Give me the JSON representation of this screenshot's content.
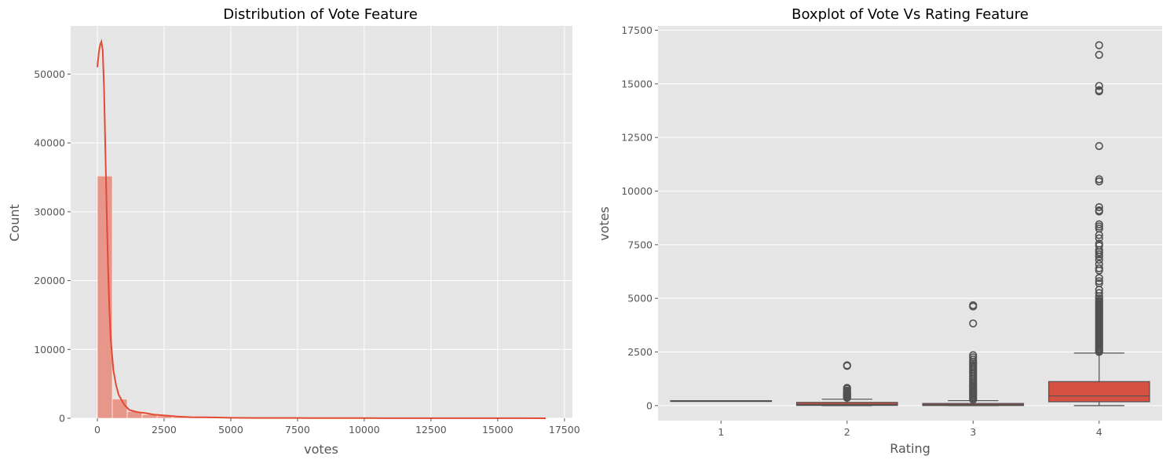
{
  "chart_data": [
    {
      "type": "histogram",
      "title": "Distribution of Vote Feature",
      "xlabel": "votes",
      "ylabel": "Count",
      "xlim": [
        -1000,
        17800
      ],
      "ylim": [
        0,
        57000
      ],
      "xticks": [
        0,
        2500,
        5000,
        7500,
        10000,
        12500,
        15000,
        17500
      ],
      "yticks": [
        0,
        10000,
        20000,
        30000,
        40000,
        50000
      ],
      "bin_width": 560,
      "bins": [
        {
          "x0": 0,
          "x1": 560,
          "count": 35200
        },
        {
          "x0": 560,
          "x1": 1120,
          "count": 2800
        },
        {
          "x0": 1120,
          "x1": 1680,
          "count": 1000
        },
        {
          "x0": 1680,
          "x1": 2240,
          "count": 550
        },
        {
          "x0": 2240,
          "x1": 2800,
          "count": 350
        },
        {
          "x0": 2800,
          "x1": 3360,
          "count": 180
        },
        {
          "x0": 3360,
          "x1": 3920,
          "count": 120
        },
        {
          "x0": 3920,
          "x1": 4480,
          "count": 80
        },
        {
          "x0": 4480,
          "x1": 5040,
          "count": 60
        },
        {
          "x0": 5040,
          "x1": 5600,
          "count": 40
        },
        {
          "x0": 5600,
          "x1": 6160,
          "count": 30
        },
        {
          "x0": 6160,
          "x1": 6720,
          "count": 25
        },
        {
          "x0": 6720,
          "x1": 7280,
          "count": 25
        },
        {
          "x0": 7280,
          "x1": 7840,
          "count": 20
        },
        {
          "x0": 7840,
          "x1": 8400,
          "count": 15
        },
        {
          "x0": 8400,
          "x1": 8960,
          "count": 15
        },
        {
          "x0": 8960,
          "x1": 9520,
          "count": 10
        },
        {
          "x0": 9520,
          "x1": 10080,
          "count": 5
        },
        {
          "x0": 10080,
          "x1": 10640,
          "count": 5
        },
        {
          "x0": 10640,
          "x1": 11200,
          "count": 3
        },
        {
          "x0": 11200,
          "x1": 11760,
          "count": 2
        },
        {
          "x0": 11760,
          "x1": 12320,
          "count": 2
        },
        {
          "x0": 12320,
          "x1": 12880,
          "count": 1
        },
        {
          "x0": 12880,
          "x1": 13440,
          "count": 1
        },
        {
          "x0": 13440,
          "x1": 14000,
          "count": 1
        },
        {
          "x0": 14000,
          "x1": 14560,
          "count": 1
        },
        {
          "x0": 14560,
          "x1": 15120,
          "count": 3
        },
        {
          "x0": 15120,
          "x1": 15680,
          "count": 1
        },
        {
          "x0": 15680,
          "x1": 16240,
          "count": 1
        },
        {
          "x0": 16240,
          "x1": 16800,
          "count": 2
        }
      ],
      "kde": [
        [
          0,
          51000
        ],
        [
          50,
          53000
        ],
        [
          100,
          54200
        ],
        [
          150,
          54700
        ],
        [
          200,
          53500
        ],
        [
          250,
          48000
        ],
        [
          300,
          39000
        ],
        [
          350,
          30000
        ],
        [
          400,
          22000
        ],
        [
          450,
          16000
        ],
        [
          500,
          11500
        ],
        [
          600,
          7000
        ],
        [
          700,
          4800
        ],
        [
          800,
          3400
        ],
        [
          1000,
          2000
        ],
        [
          1200,
          1200
        ],
        [
          1500,
          900
        ],
        [
          1800,
          750
        ],
        [
          2100,
          550
        ],
        [
          2400,
          450
        ],
        [
          2700,
          350
        ],
        [
          3000,
          250
        ],
        [
          3500,
          160
        ],
        [
          4000,
          140
        ],
        [
          4500,
          110
        ],
        [
          5000,
          70
        ],
        [
          6000,
          50
        ],
        [
          7000,
          40
        ],
        [
          8000,
          30
        ],
        [
          9000,
          25
        ],
        [
          10000,
          20
        ],
        [
          11000,
          15
        ],
        [
          12000,
          12
        ],
        [
          13000,
          10
        ],
        [
          14000,
          10
        ],
        [
          15000,
          12
        ],
        [
          16000,
          8
        ],
        [
          16800,
          5
        ]
      ],
      "colors": {
        "bar": "#e68a7a",
        "kde": "#e24a33"
      }
    },
    {
      "type": "boxplot",
      "title": "Boxplot of Vote Vs Rating Feature",
      "xlabel": "Rating",
      "ylabel": "votes",
      "ylim": [
        -700,
        17700
      ],
      "yticks": [
        0,
        2500,
        5000,
        7500,
        10000,
        12500,
        15000,
        17500
      ],
      "categories": [
        "1",
        "2",
        "3",
        "4"
      ],
      "boxes": [
        {
          "category": "1",
          "whislo": 230,
          "q1": 230,
          "med": 230,
          "q3": 230,
          "whishi": 230,
          "fliers": []
        },
        {
          "category": "2",
          "whislo": 0,
          "q1": 10,
          "med": 60,
          "q3": 150,
          "whishi": 300,
          "fliers": [
            360,
            400,
            440,
            480,
            520,
            560,
            600,
            650,
            700,
            780,
            830,
            1850,
            1880
          ]
        },
        {
          "category": "3",
          "whislo": 0,
          "q1": 5,
          "med": 40,
          "q3": 100,
          "whishi": 230,
          "fliers": [
            280,
            340,
            400,
            460,
            520,
            580,
            640,
            700,
            760,
            820,
            880,
            940,
            1000,
            1080,
            1160,
            1240,
            1320,
            1400,
            1480,
            1560,
            1640,
            1720,
            1800,
            1880,
            1960,
            2050,
            2150,
            2250,
            2350,
            3830,
            4620,
            4680
          ]
        },
        {
          "category": "4",
          "whislo": 0,
          "q1": 180,
          "med": 450,
          "q3": 1120,
          "whishi": 2450,
          "fliers": [
            2500,
            2560,
            2620,
            2680,
            2740,
            2800,
            2860,
            2920,
            2980,
            3040,
            3100,
            3160,
            3220,
            3280,
            3340,
            3400,
            3460,
            3520,
            3580,
            3640,
            3700,
            3760,
            3820,
            3880,
            3940,
            4000,
            4060,
            4120,
            4180,
            4240,
            4300,
            4360,
            4420,
            4480,
            4540,
            4600,
            4660,
            4720,
            4780,
            4840,
            4900,
            5000,
            5100,
            5250,
            5400,
            5700,
            5800,
            5950,
            6300,
            6400,
            6600,
            6800,
            6950,
            7050,
            7150,
            7250,
            7450,
            7550,
            7800,
            7950,
            8250,
            8350,
            8450,
            9050,
            9100,
            9250,
            10450,
            10550,
            12100,
            14650,
            14700,
            14900,
            16350,
            16800
          ]
        }
      ],
      "colors": {
        "box": "#d75142",
        "line": "#505050"
      }
    }
  ]
}
